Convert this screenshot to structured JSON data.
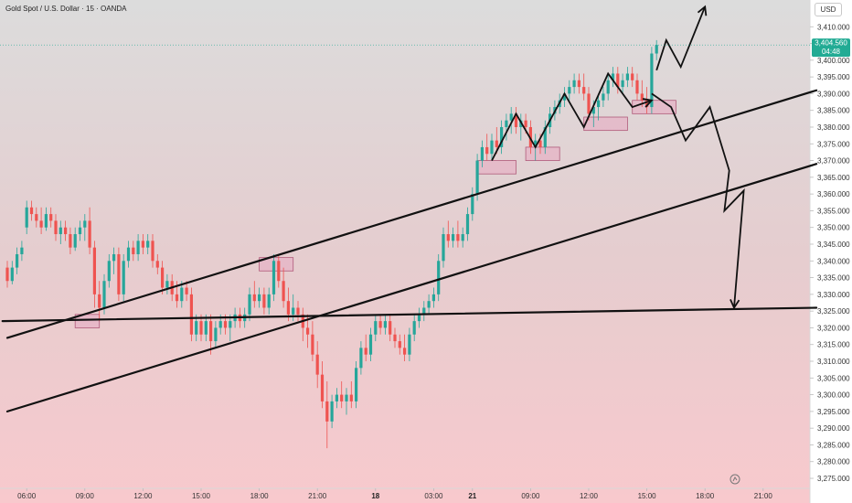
{
  "chart_data": {
    "type": "candlestick",
    "title": "Gold Spot / U.S. Dollar · 15 · OANDA",
    "currency_label": "USD",
    "price_label": "3,404.560",
    "countdown_label": "04:48",
    "last_price": 3404.56,
    "ylim": [
      3272,
      3418
    ],
    "y_ticks": [
      "3,410.000",
      "3,405.000",
      "3,400.000",
      "3,395.000",
      "3,390.000",
      "3,385.000",
      "3,380.000",
      "3,375.000",
      "3,370.000",
      "3,365.000",
      "3,360.000",
      "3,355.000",
      "3,350.000",
      "3,345.000",
      "3,340.000",
      "3,335.000",
      "3,330.000",
      "3,325.000",
      "3,320.000",
      "3,315.000",
      "3,310.000",
      "3,305.000",
      "3,300.000",
      "3,295.000",
      "3,290.000",
      "3,285.000",
      "3,280.000",
      "3,275.000"
    ],
    "x_ticks": [
      {
        "label": "06:00",
        "t": 4
      },
      {
        "label": "09:00",
        "t": 16
      },
      {
        "label": "12:00",
        "t": 28
      },
      {
        "label": "15:00",
        "t": 40
      },
      {
        "label": "18:00",
        "t": 52
      },
      {
        "label": "21:00",
        "t": 64
      },
      {
        "label": "18",
        "t": 76,
        "bold": true
      },
      {
        "label": "03:00",
        "t": 88
      },
      {
        "label": "21",
        "t": 96,
        "bold": true
      },
      {
        "label": "09:00",
        "t": 108
      },
      {
        "label": "12:00",
        "t": 120
      },
      {
        "label": "15:00",
        "t": 132
      },
      {
        "label": "18:00",
        "t": 144
      },
      {
        "label": "21:00",
        "t": 156
      }
    ],
    "colors": {
      "up": "#26a69a",
      "down": "#ef5350",
      "line": "#111111",
      "zone_fill": "#e6b3c6",
      "zone_stroke": "#b05a7a",
      "price_badge": "#22ab94"
    },
    "candles": [
      [
        0,
        3338,
        3340,
        3332,
        3334
      ],
      [
        1,
        3334,
        3340,
        3333,
        3338
      ],
      [
        2,
        3338,
        3344,
        3336,
        3342
      ],
      [
        3,
        3342,
        3346,
        3340,
        3344
      ],
      [
        4,
        3350,
        3358,
        3348,
        3356
      ],
      [
        5,
        3356,
        3358,
        3352,
        3354
      ],
      [
        6,
        3354,
        3356,
        3350,
        3352
      ],
      [
        7,
        3352,
        3356,
        3348,
        3350
      ],
      [
        8,
        3350,
        3356,
        3349,
        3354
      ],
      [
        9,
        3354,
        3356,
        3350,
        3352
      ],
      [
        10,
        3352,
        3354,
        3346,
        3348
      ],
      [
        11,
        3348,
        3352,
        3345,
        3350
      ],
      [
        12,
        3350,
        3352,
        3346,
        3348
      ],
      [
        13,
        3348,
        3350,
        3342,
        3344
      ],
      [
        14,
        3344,
        3350,
        3343,
        3348
      ],
      [
        15,
        3348,
        3352,
        3346,
        3350
      ],
      [
        16,
        3350,
        3354,
        3346,
        3352
      ],
      [
        17,
        3352,
        3356,
        3342,
        3344
      ],
      [
        18,
        3344,
        3346,
        3326,
        3330
      ],
      [
        19,
        3330,
        3334,
        3322,
        3326
      ],
      [
        20,
        3326,
        3336,
        3324,
        3334
      ],
      [
        21,
        3334,
        3342,
        3332,
        3340
      ],
      [
        22,
        3340,
        3344,
        3336,
        3342
      ],
      [
        23,
        3342,
        3344,
        3328,
        3330
      ],
      [
        24,
        3330,
        3342,
        3328,
        3340
      ],
      [
        25,
        3340,
        3346,
        3338,
        3344
      ],
      [
        26,
        3344,
        3346,
        3340,
        3342
      ],
      [
        27,
        3342,
        3348,
        3340,
        3346
      ],
      [
        28,
        3346,
        3348,
        3342,
        3344
      ],
      [
        29,
        3344,
        3348,
        3342,
        3346
      ],
      [
        30,
        3346,
        3348,
        3338,
        3340
      ],
      [
        31,
        3340,
        3342,
        3336,
        3338
      ],
      [
        32,
        3338,
        3340,
        3330,
        3332
      ],
      [
        33,
        3332,
        3336,
        3330,
        3334
      ],
      [
        34,
        3334,
        3336,
        3328,
        3330
      ],
      [
        35,
        3330,
        3334,
        3326,
        3328
      ],
      [
        36,
        3328,
        3334,
        3326,
        3332
      ],
      [
        37,
        3332,
        3334,
        3328,
        3330
      ],
      [
        38,
        3330,
        3332,
        3316,
        3318
      ],
      [
        39,
        3318,
        3324,
        3316,
        3322
      ],
      [
        40,
        3322,
        3324,
        3316,
        3318
      ],
      [
        41,
        3318,
        3324,
        3316,
        3322
      ],
      [
        42,
        3322,
        3324,
        3312,
        3316
      ],
      [
        43,
        3316,
        3322,
        3314,
        3320
      ],
      [
        44,
        3320,
        3324,
        3318,
        3322
      ],
      [
        45,
        3322,
        3324,
        3318,
        3320
      ],
      [
        46,
        3320,
        3324,
        3316,
        3322
      ],
      [
        47,
        3322,
        3326,
        3320,
        3324
      ],
      [
        48,
        3324,
        3326,
        3320,
        3322
      ],
      [
        49,
        3322,
        3326,
        3320,
        3324
      ],
      [
        50,
        3324,
        3332,
        3322,
        3330
      ],
      [
        51,
        3330,
        3334,
        3326,
        3328
      ],
      [
        52,
        3328,
        3332,
        3326,
        3330
      ],
      [
        53,
        3330,
        3332,
        3324,
        3326
      ],
      [
        54,
        3326,
        3332,
        3324,
        3330
      ],
      [
        55,
        3330,
        3342,
        3328,
        3340
      ],
      [
        56,
        3340,
        3342,
        3332,
        3334
      ],
      [
        57,
        3334,
        3338,
        3326,
        3328
      ],
      [
        58,
        3328,
        3332,
        3322,
        3324
      ],
      [
        59,
        3324,
        3330,
        3322,
        3326
      ],
      [
        60,
        3326,
        3328,
        3322,
        3324
      ],
      [
        61,
        3324,
        3326,
        3316,
        3320
      ],
      [
        62,
        3320,
        3324,
        3314,
        3318
      ],
      [
        63,
        3318,
        3322,
        3310,
        3312
      ],
      [
        64,
        3312,
        3316,
        3302,
        3306
      ],
      [
        65,
        3306,
        3310,
        3296,
        3298
      ],
      [
        66,
        3298,
        3304,
        3284,
        3292
      ],
      [
        67,
        3292,
        3300,
        3290,
        3298
      ],
      [
        68,
        3298,
        3302,
        3296,
        3300
      ],
      [
        69,
        3300,
        3304,
        3296,
        3298
      ],
      [
        70,
        3298,
        3302,
        3294,
        3300
      ],
      [
        71,
        3300,
        3304,
        3296,
        3298
      ],
      [
        72,
        3298,
        3310,
        3296,
        3308
      ],
      [
        73,
        3308,
        3316,
        3306,
        3314
      ],
      [
        74,
        3314,
        3318,
        3310,
        3312
      ],
      [
        75,
        3312,
        3320,
        3310,
        3318
      ],
      [
        76,
        3318,
        3324,
        3316,
        3322
      ],
      [
        77,
        3322,
        3324,
        3318,
        3320
      ],
      [
        78,
        3320,
        3324,
        3318,
        3322
      ],
      [
        79,
        3322,
        3324,
        3316,
        3318
      ],
      [
        80,
        3318,
        3320,
        3314,
        3316
      ],
      [
        81,
        3316,
        3318,
        3312,
        3314
      ],
      [
        82,
        3314,
        3318,
        3310,
        3312
      ],
      [
        83,
        3312,
        3320,
        3310,
        3318
      ],
      [
        84,
        3318,
        3324,
        3316,
        3322
      ],
      [
        85,
        3322,
        3326,
        3320,
        3324
      ],
      [
        86,
        3324,
        3328,
        3322,
        3326
      ],
      [
        87,
        3326,
        3330,
        3324,
        3328
      ],
      [
        88,
        3328,
        3332,
        3326,
        3330
      ],
      [
        89,
        3330,
        3342,
        3328,
        3340
      ],
      [
        90,
        3340,
        3350,
        3338,
        3348
      ],
      [
        91,
        3348,
        3352,
        3344,
        3346
      ],
      [
        92,
        3346,
        3350,
        3344,
        3348
      ],
      [
        93,
        3348,
        3352,
        3344,
        3346
      ],
      [
        94,
        3346,
        3350,
        3344,
        3348
      ],
      [
        95,
        3348,
        3356,
        3346,
        3354
      ],
      [
        96,
        3354,
        3362,
        3352,
        3360
      ],
      [
        97,
        3360,
        3372,
        3358,
        3370
      ],
      [
        98,
        3370,
        3376,
        3368,
        3374
      ],
      [
        99,
        3374,
        3378,
        3370,
        3372
      ],
      [
        100,
        3372,
        3378,
        3370,
        3376
      ],
      [
        101,
        3376,
        3380,
        3372,
        3374
      ],
      [
        102,
        3374,
        3382,
        3372,
        3380
      ],
      [
        103,
        3380,
        3384,
        3376,
        3382
      ],
      [
        104,
        3382,
        3386,
        3378,
        3384
      ],
      [
        105,
        3384,
        3386,
        3378,
        3380
      ],
      [
        106,
        3380,
        3384,
        3376,
        3382
      ],
      [
        107,
        3382,
        3384,
        3378,
        3380
      ],
      [
        108,
        3380,
        3382,
        3372,
        3374
      ],
      [
        109,
        3374,
        3378,
        3370,
        3376
      ],
      [
        110,
        3376,
        3378,
        3372,
        3374
      ],
      [
        111,
        3374,
        3382,
        3372,
        3380
      ],
      [
        112,
        3380,
        3386,
        3378,
        3384
      ],
      [
        113,
        3384,
        3388,
        3382,
        3386
      ],
      [
        114,
        3386,
        3390,
        3384,
        3388
      ],
      [
        115,
        3388,
        3392,
        3386,
        3390
      ],
      [
        116,
        3390,
        3394,
        3388,
        3392
      ],
      [
        117,
        3392,
        3396,
        3390,
        3394
      ],
      [
        118,
        3394,
        3396,
        3390,
        3392
      ],
      [
        119,
        3392,
        3396,
        3388,
        3390
      ],
      [
        120,
        3390,
        3392,
        3382,
        3384
      ],
      [
        121,
        3384,
        3388,
        3380,
        3386
      ],
      [
        122,
        3386,
        3390,
        3382,
        3388
      ],
      [
        123,
        3388,
        3392,
        3386,
        3390
      ],
      [
        124,
        3390,
        3396,
        3388,
        3394
      ],
      [
        125,
        3394,
        3398,
        3392,
        3396
      ],
      [
        126,
        3396,
        3398,
        3390,
        3392
      ],
      [
        127,
        3392,
        3396,
        3390,
        3394
      ],
      [
        128,
        3394,
        3398,
        3392,
        3396
      ],
      [
        129,
        3396,
        3398,
        3392,
        3394
      ],
      [
        130,
        3394,
        3396,
        3388,
        3390
      ],
      [
        131,
        3390,
        3394,
        3386,
        3388
      ],
      [
        132,
        3388,
        3392,
        3384,
        3386
      ],
      [
        133,
        3386,
        3404,
        3384,
        3402
      ],
      [
        134,
        3402,
        3406,
        3400,
        3404.56
      ]
    ],
    "trend_lines": [
      {
        "name": "upper-channel-line",
        "from": [
          0,
          3317
        ],
        "to": [
          167,
          3391
        ]
      },
      {
        "name": "lower-channel-line",
        "from": [
          0,
          3295
        ],
        "to": [
          167,
          3369
        ]
      },
      {
        "name": "horizontal-support-line",
        "from": [
          -1,
          3322
        ],
        "to": [
          167,
          3326
        ]
      }
    ],
    "zones": [
      {
        "name": "zone-1",
        "t0": 14,
        "t1": 19,
        "p0": 3320,
        "p1": 3324
      },
      {
        "name": "zone-2",
        "t0": 52,
        "t1": 59,
        "p0": 3337,
        "p1": 3341
      },
      {
        "name": "zone-3",
        "t0": 97,
        "t1": 105,
        "p0": 3366,
        "p1": 3370
      },
      {
        "name": "zone-4",
        "t0": 107,
        "t1": 114,
        "p0": 3370,
        "p1": 3374
      },
      {
        "name": "zone-5",
        "t0": 119,
        "t1": 128,
        "p0": 3379,
        "p1": 3383
      },
      {
        "name": "zone-6",
        "t0": 129,
        "t1": 138,
        "p0": 3384,
        "p1": 3388
      }
    ],
    "forecast_paths": [
      {
        "name": "swing-path",
        "points": [
          [
            100,
            3370
          ],
          [
            105,
            3384
          ],
          [
            109,
            3374
          ],
          [
            115,
            3390
          ],
          [
            119,
            3380
          ],
          [
            124,
            3396
          ],
          [
            129,
            3386
          ],
          [
            133,
            3388
          ]
        ]
      },
      {
        "name": "up-projection-arrow",
        "points": [
          [
            134,
            3397
          ],
          [
            136,
            3406
          ],
          [
            139,
            3398
          ],
          [
            144,
            3416
          ]
        ]
      },
      {
        "name": "down-projection-arrow",
        "points": [
          [
            133,
            3390
          ],
          [
            137,
            3386
          ],
          [
            140,
            3376
          ],
          [
            145,
            3386
          ],
          [
            149,
            3367
          ],
          [
            148,
            3355
          ],
          [
            152,
            3361
          ],
          [
            150,
            3326
          ]
        ]
      }
    ]
  }
}
